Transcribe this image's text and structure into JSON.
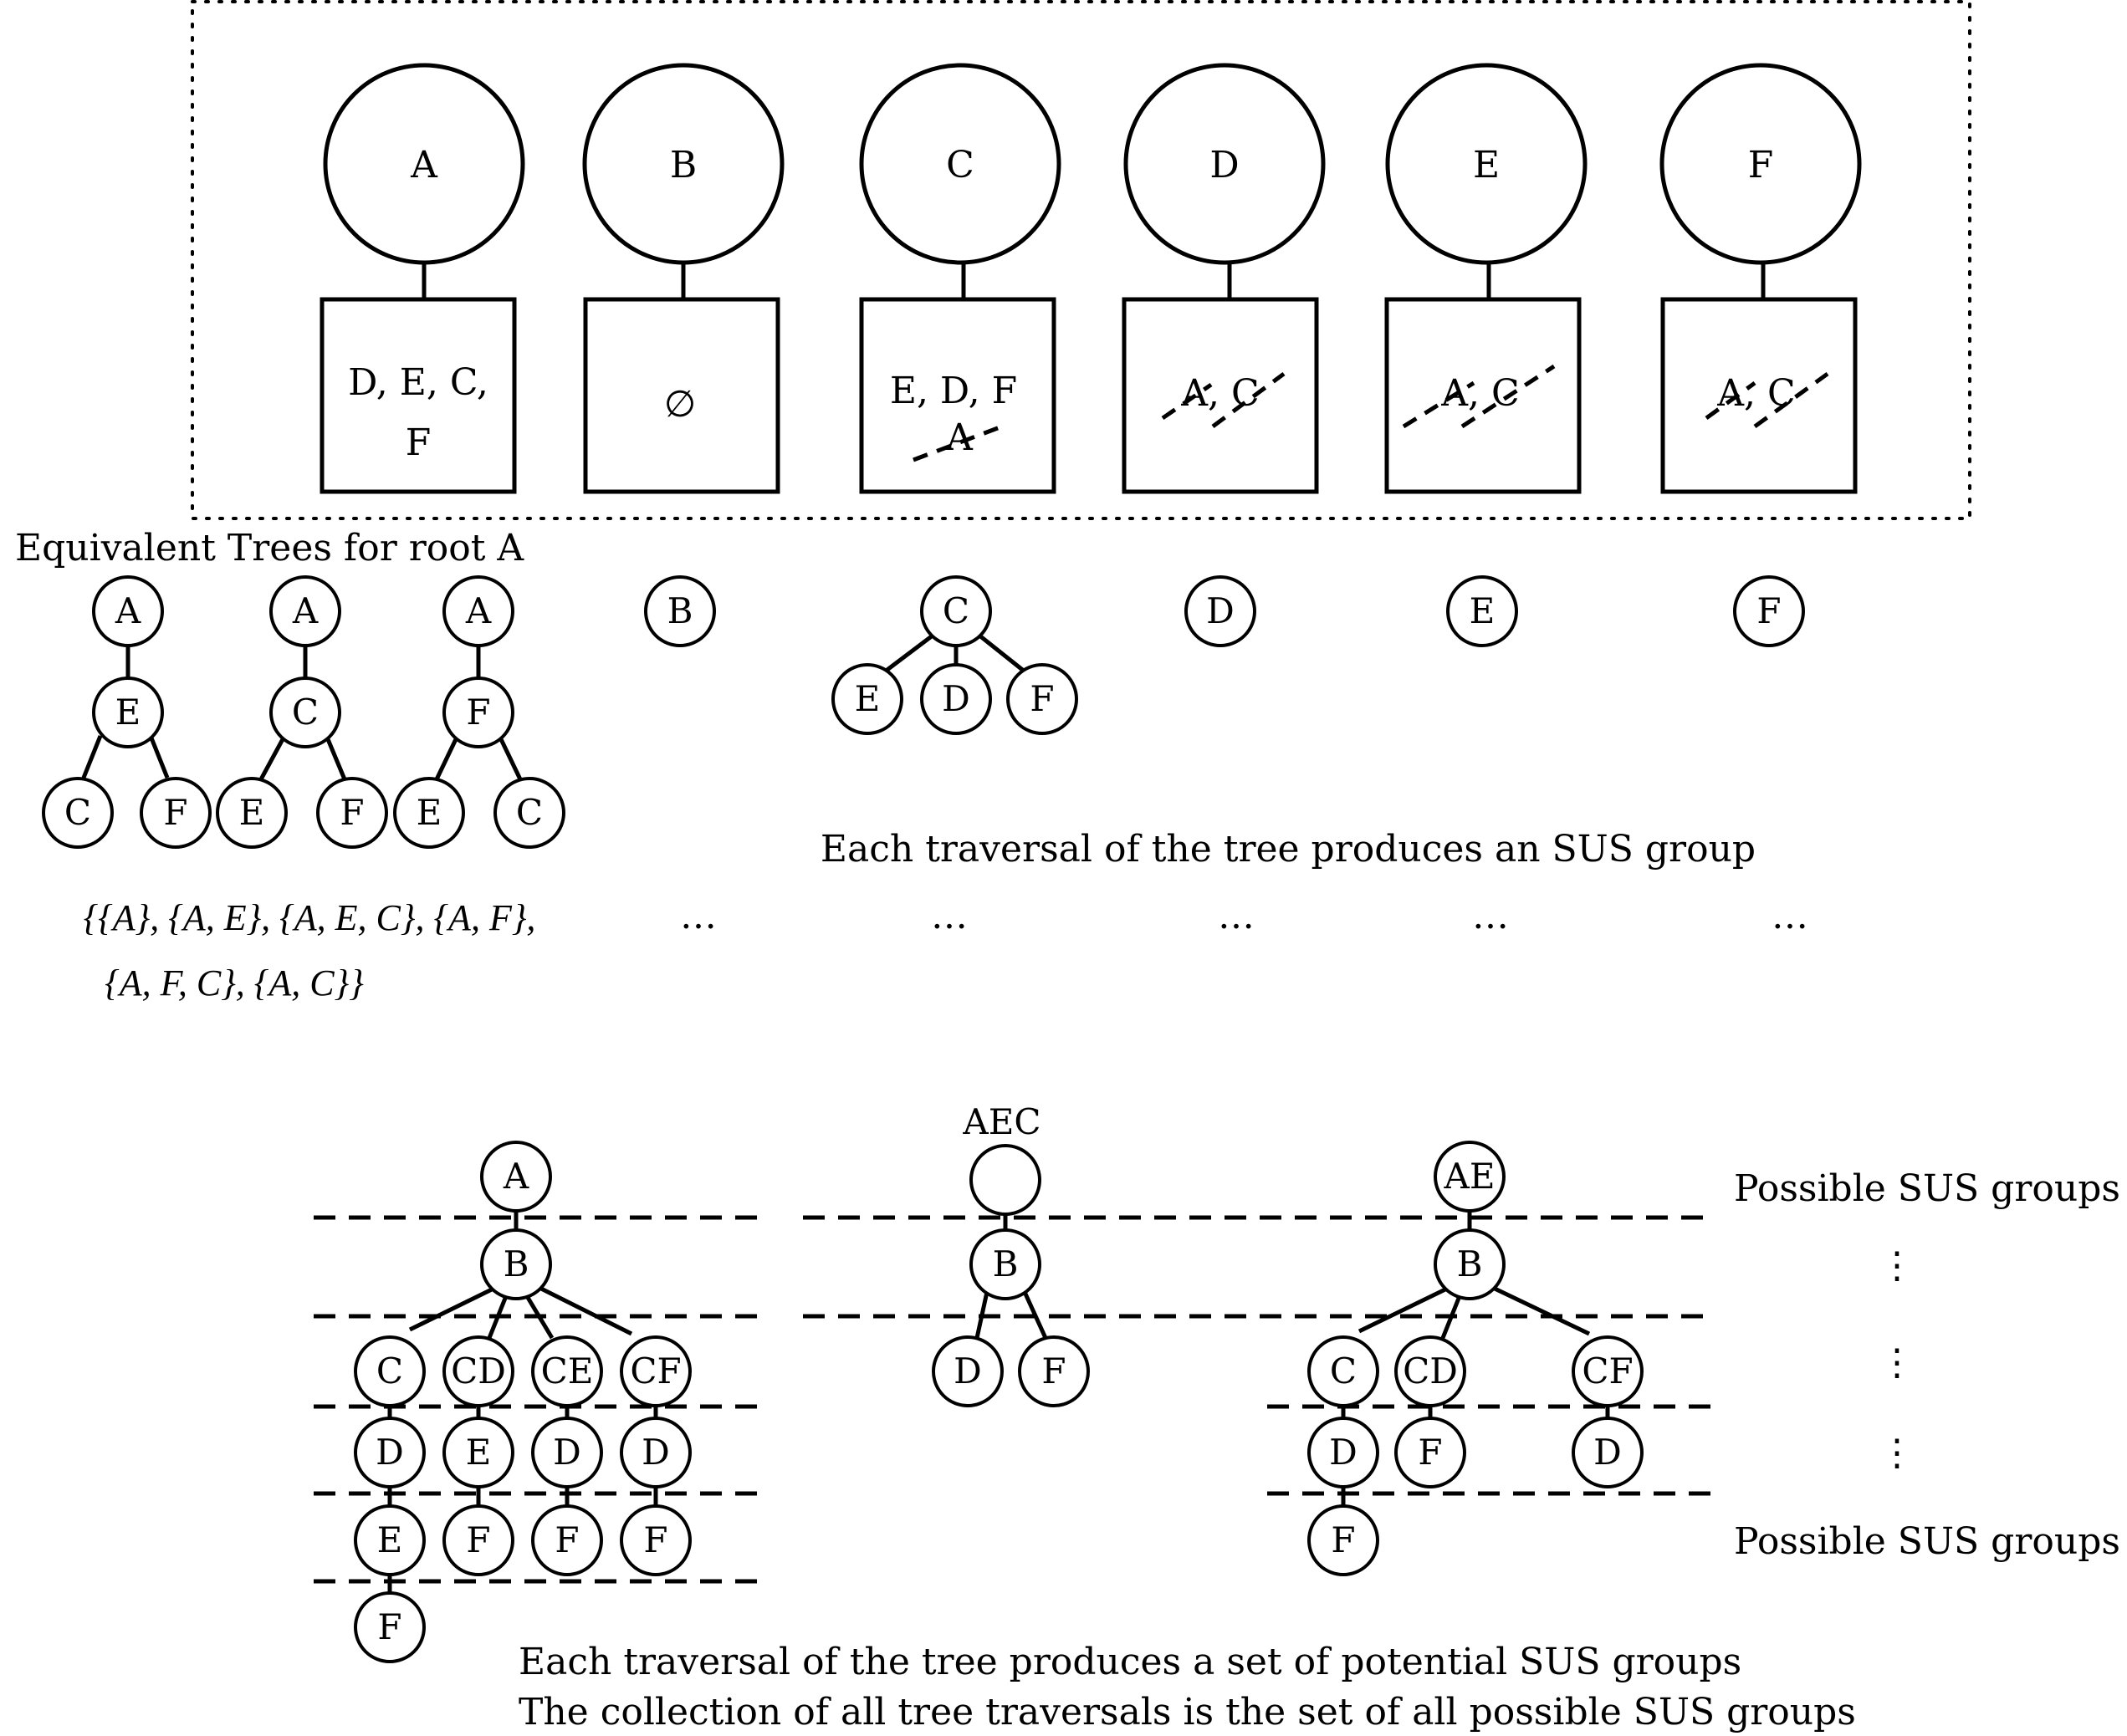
{
  "top": {
    "nodes": [
      {
        "id": "A",
        "set_lines": [
          "D, E, C,",
          "F"
        ],
        "struck": []
      },
      {
        "id": "B",
        "set_lines": [
          "∅"
        ],
        "struck": []
      },
      {
        "id": "C",
        "set_lines": [
          "E, D, F"
        ],
        "struck": [
          "A"
        ]
      },
      {
        "id": "D",
        "set_lines": [],
        "struck": [
          "A, C"
        ]
      },
      {
        "id": "E",
        "set_lines": [],
        "struck": [
          "A, C"
        ]
      },
      {
        "id": "F",
        "set_lines": [],
        "struck": [
          "A, C"
        ]
      }
    ]
  },
  "middle": {
    "title": "Equivalent Trees for root A",
    "trees_a": [
      {
        "root": "A",
        "child": "E",
        "leaves": [
          "C",
          "F"
        ]
      },
      {
        "root": "A",
        "child": "C",
        "leaves": [
          "E",
          "F"
        ]
      },
      {
        "root": "A",
        "child": "F",
        "leaves": [
          "E",
          "C"
        ]
      }
    ],
    "single_nodes": [
      "B",
      "D",
      "E",
      "F"
    ],
    "tree_c": {
      "root": "C",
      "leaves": [
        "E",
        "D",
        "F"
      ]
    },
    "traversal_caption": "Each traversal of the tree produces an SUS group",
    "sus_line1": "{{A}, {A, E}, {A, E, C}, {A, F},",
    "sus_line2": "{A, F, C}, {A, C}}",
    "ellipsis": "…"
  },
  "bottom": {
    "tree1": {
      "root": "A",
      "level1": "B",
      "columns": [
        [
          "C",
          "D",
          "E",
          "F"
        ],
        [
          "CD",
          "E",
          "F"
        ],
        [
          "CE",
          "D",
          "F"
        ],
        [
          "CF",
          "D",
          "F"
        ]
      ]
    },
    "tree2": {
      "root_label": "AEC",
      "root": "",
      "level1": "B",
      "leaves": [
        "D",
        "F"
      ]
    },
    "tree3": {
      "root": "AE",
      "level1": "B",
      "columns": [
        [
          "C",
          "D",
          "F"
        ],
        [
          "CD",
          "F"
        ],
        [
          "CF",
          "D"
        ]
      ]
    },
    "side_label_top": "Possible SUS groups",
    "side_label_bottom": "Possible SUS groups",
    "vdots": "⋮",
    "caption1": "Each traversal of the tree produces a set of potential SUS groups",
    "caption2": "The collection of all tree traversals is the set of all possible SUS groups"
  }
}
